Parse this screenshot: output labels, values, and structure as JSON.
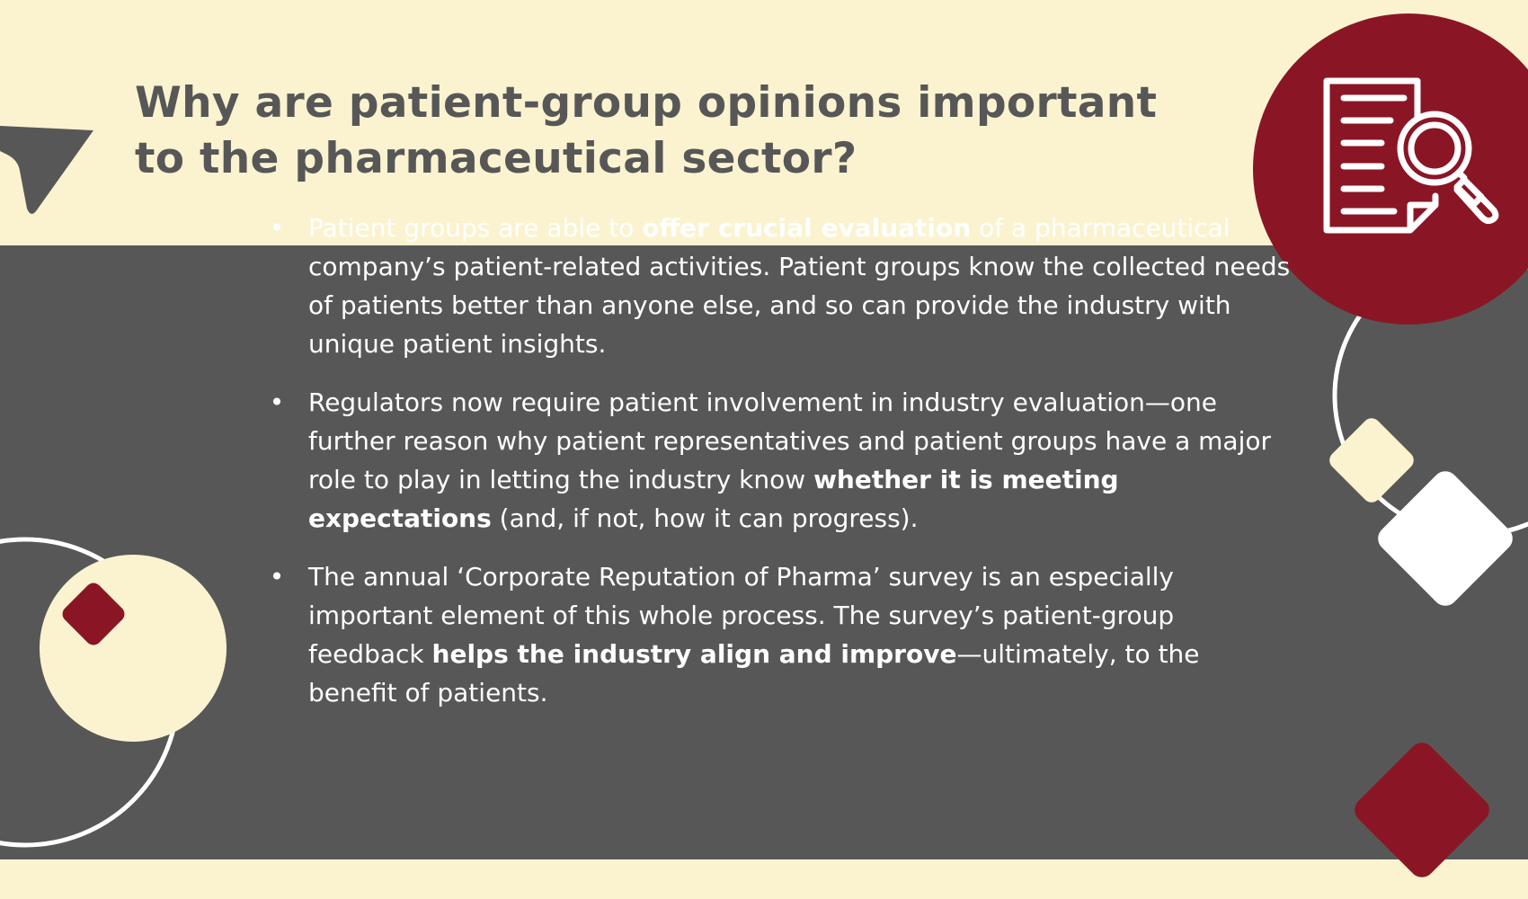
{
  "colors": {
    "cream": "#fbf3d0",
    "charcoal": "#575757",
    "maroon": "#8a1625",
    "white": "#ffffff",
    "heading_text": "#575757",
    "body_text": "#ffffff"
  },
  "icons": {
    "top_right_badge": "document-search-icon",
    "bullet_marker": "•"
  },
  "heading": {
    "line1": "Why are patient-group opinions important",
    "line2": "to the pharmaceutical sector?"
  },
  "bullets": [
    {
      "marker": "•",
      "before": "Patient groups are able to ",
      "bold": "offer crucial evaluation",
      "after": " of a pharmaceutical company’s patient-related activities. Patient groups know the collected needs of patients better than anyone else, and so can provide the industry with unique patient insights."
    },
    {
      "marker": "•",
      "before": "Regulators now require patient involvement in industry evaluation—one further reason why patient representatives and patient groups have a major role to play in letting the industry know ",
      "bold": "whether it is meeting expectations",
      "after": " (and, if not, how it can progress)."
    },
    {
      "marker": "•",
      "before": "The annual ‘Corporate Reputation of Pharma’ survey is an especially important element of this whole process. The survey’s patient-group feedback ",
      "bold": "helps the industry align and improve",
      "after": "—ultimately, to the benefit of patients."
    }
  ]
}
